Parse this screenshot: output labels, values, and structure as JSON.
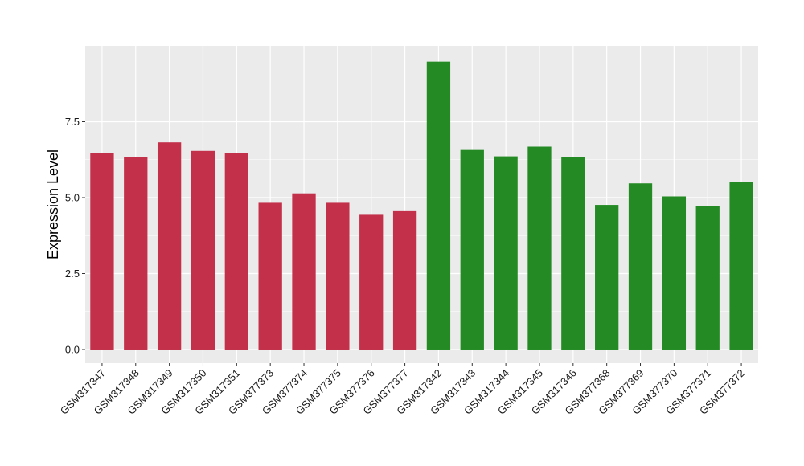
{
  "chart_data": {
    "type": "bar",
    "title": "",
    "xlabel": "",
    "ylabel": "Expression Level",
    "ylim": [
      -0.45,
      10.0
    ],
    "yticks": [
      "0.0",
      "2.5",
      "5.0",
      "7.5"
    ],
    "grid": true,
    "legend": "none",
    "colors": {
      "panel": "#EBEBEB",
      "grid": "#FFFFFF",
      "group1": "#C3304A",
      "group2": "#248B24"
    },
    "categories": [
      "GSM317347",
      "GSM317348",
      "GSM317349",
      "GSM317350",
      "GSM317351",
      "GSM377373",
      "GSM377374",
      "GSM377375",
      "GSM377376",
      "GSM377377",
      "GSM317342",
      "GSM317343",
      "GSM317344",
      "GSM317345",
      "GSM317346",
      "GSM377368",
      "GSM377369",
      "GSM377370",
      "GSM377371",
      "GSM377372"
    ],
    "values": [
      6.48,
      6.33,
      6.82,
      6.54,
      6.47,
      4.83,
      5.14,
      4.83,
      4.46,
      4.58,
      9.48,
      6.57,
      6.36,
      6.68,
      6.33,
      4.76,
      5.47,
      5.04,
      4.73,
      5.52
    ],
    "group": [
      1,
      1,
      1,
      1,
      1,
      1,
      1,
      1,
      1,
      1,
      2,
      2,
      2,
      2,
      2,
      2,
      2,
      2,
      2,
      2
    ]
  }
}
